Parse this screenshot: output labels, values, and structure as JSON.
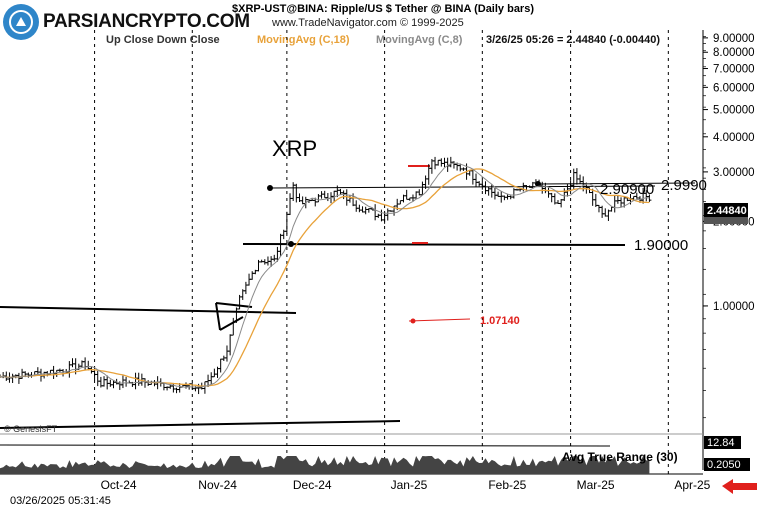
{
  "header": {
    "title_line": "$XRP-UST@BINA:  Ripple/US $ Tether @ BINA  (Daily bars)",
    "copyright_line": "www.TradeNavigator.com © 1999-2025",
    "legend_up_down": "Up Close   Down Close",
    "legend_ma18": "MovingAvg (C,18)",
    "legend_ma8": "MovingAvg (C,8)",
    "last_quote": "3/26/25 05:26 = 2.44840 (-0.00440)"
  },
  "logo": {
    "text": "PARSIANCRYPTO.COM"
  },
  "watermark": "© GenesisFT",
  "timestamp": "03/26/2025 05:31:45",
  "annotations": {
    "symbol": "XRP",
    "resistance_label": "2.90900",
    "high_label": "2.9990",
    "support_label": "1.90000",
    "low_marker_label": "1.07140"
  },
  "indicator": {
    "name": "Avg True Range (30)",
    "top_value": "12.84",
    "last_value": "0.2050"
  },
  "price_axis": {
    "last_price_tag": "2.44840"
  },
  "colors": {
    "ma18": "#e8a23a",
    "ma8": "#8a8a8a",
    "bars": "#000000",
    "marker": "#e0201c",
    "last_tag": "#000000"
  },
  "chart_data": {
    "type": "ohlc",
    "title": "$XRP-UST@BINA:  Ripple/US $ Tether @ BINA  (Daily bars)",
    "y_scale": "log",
    "ylim": [
      0.35,
      9.6
    ],
    "y_ticks": [
      "9.00000",
      "8.00000",
      "7.00000",
      "6.00000",
      "5.00000",
      "4.00000",
      "3.00000",
      "2.00000",
      "1.00000"
    ],
    "x_tick_labels": [
      "Oct-24",
      "Nov-24",
      "Dec-24",
      "Jan-25",
      "Feb-25",
      "Mar-25",
      "Apr-25"
    ],
    "x_tick_dates": [
      "2024-10-01",
      "2024-11-01",
      "2024-12-01",
      "2025-01-01",
      "2025-02-01",
      "2025-03-01",
      "2025-04-01"
    ],
    "x_range": [
      "2024-09-01",
      "2025-04-12"
    ],
    "key_prices": {
      "high": 2.999,
      "resistance": 2.909,
      "support": 1.9,
      "low_marker": 1.0714,
      "last": 2.4484
    },
    "closes": [
      {
        "date": "2024-09-01",
        "close": 0.56
      },
      {
        "date": "2024-09-10",
        "close": 0.57
      },
      {
        "date": "2024-09-20",
        "close": 0.59
      },
      {
        "date": "2024-09-28",
        "close": 0.62
      },
      {
        "date": "2024-10-03",
        "close": 0.53
      },
      {
        "date": "2024-10-15",
        "close": 0.54
      },
      {
        "date": "2024-10-25",
        "close": 0.52
      },
      {
        "date": "2024-11-04",
        "close": 0.51
      },
      {
        "date": "2024-11-08",
        "close": 0.58
      },
      {
        "date": "2024-11-12",
        "close": 0.7
      },
      {
        "date": "2024-11-16",
        "close": 1.05
      },
      {
        "date": "2024-11-22",
        "close": 1.45
      },
      {
        "date": "2024-11-27",
        "close": 1.45
      },
      {
        "date": "2024-11-30",
        "close": 1.9
      },
      {
        "date": "2024-12-03",
        "close": 2.7
      },
      {
        "date": "2024-12-05",
        "close": 2.3
      },
      {
        "date": "2024-12-10",
        "close": 2.4
      },
      {
        "date": "2024-12-17",
        "close": 2.55
      },
      {
        "date": "2024-12-24",
        "close": 2.25
      },
      {
        "date": "2024-12-31",
        "close": 2.08
      },
      {
        "date": "2025-01-06",
        "close": 2.4
      },
      {
        "date": "2025-01-12",
        "close": 2.55
      },
      {
        "date": "2025-01-16",
        "close": 3.3
      },
      {
        "date": "2025-01-20",
        "close": 3.2
      },
      {
        "date": "2025-01-26",
        "close": 3.1
      },
      {
        "date": "2025-02-01",
        "close": 2.7
      },
      {
        "date": "2025-02-07",
        "close": 2.4
      },
      {
        "date": "2025-02-13",
        "close": 2.6
      },
      {
        "date": "2025-02-19",
        "close": 2.7
      },
      {
        "date": "2025-02-25",
        "close": 2.25
      },
      {
        "date": "2025-03-02",
        "close": 2.9
      },
      {
        "date": "2025-03-06",
        "close": 2.6
      },
      {
        "date": "2025-03-11",
        "close": 2.1
      },
      {
        "date": "2025-03-16",
        "close": 2.35
      },
      {
        "date": "2025-03-20",
        "close": 2.45
      },
      {
        "date": "2025-03-26",
        "close": 2.4484
      }
    ],
    "series": [
      {
        "name": "MovingAvg (C,18)"
      },
      {
        "name": "MovingAvg (C,8)"
      }
    ]
  }
}
